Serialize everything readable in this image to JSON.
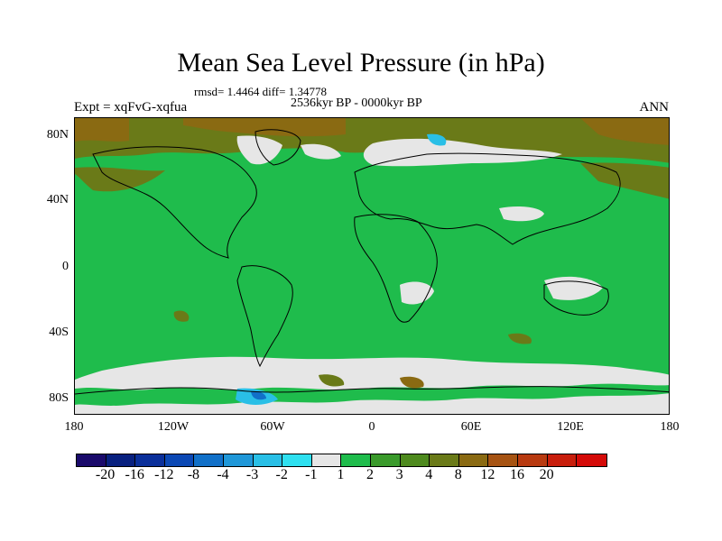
{
  "title": "Mean Sea Level Pressure (in hPa)",
  "stats_line": "rmsd= 1.4464 diff= 1.34778",
  "period": "2536kyr BP - 0000kyr BP",
  "experiment": "Expt = xqFvG-xqfua",
  "season": "ANN",
  "y_ticks": [
    "80N",
    "40N",
    "0",
    "40S",
    "80S"
  ],
  "x_ticks": [
    "180",
    "120W",
    "60W",
    "0",
    "60E",
    "120E",
    "180"
  ],
  "colorbar": {
    "colors": [
      "#1a0a6b",
      "#08207f",
      "#0a2f9a",
      "#0b48b4",
      "#1170c8",
      "#1f97d8",
      "#29bfe6",
      "#2ee0f0",
      "#e6e6e6",
      "#1fbc4c",
      "#3a9a2b",
      "#4e8a1e",
      "#6a7a18",
      "#8a6a12",
      "#a65312",
      "#b83a10",
      "#c81e0c",
      "#d40a08"
    ],
    "labels": [
      "-20",
      "-16",
      "-12",
      "-8",
      "-4",
      "-3",
      "-2",
      "-1",
      "1",
      "2",
      "3",
      "4",
      "8",
      "12",
      "16",
      "20"
    ]
  },
  "map_colors": {
    "ocean_base": "#1fbc4c",
    "near_zero": "#e6e6e6",
    "olive": "#6a7a18",
    "brown": "#8a6a12",
    "cyan": "#29bfe6",
    "blue": "#1170c8"
  }
}
